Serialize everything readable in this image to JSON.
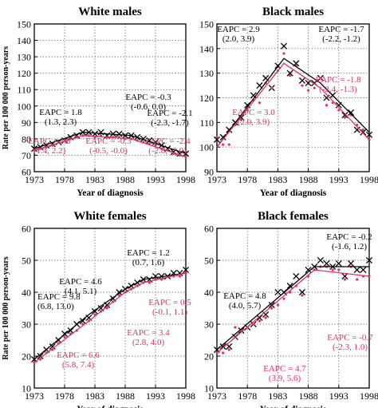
{
  "figure": {
    "ylabel": "Rate per 100 000 person-years",
    "xlabel": "Year of diagnosis"
  },
  "chart_data": [
    {
      "type": "line",
      "title": "White males",
      "xlabel": "Year of diagnosis",
      "ylabel": "Rate per 100 000 person-years",
      "xlim": [
        1973,
        1998
      ],
      "ylim": [
        60,
        150
      ],
      "xticks": [
        1973,
        1978,
        1983,
        1988,
        1993,
        1998
      ],
      "yticks": [
        60,
        70,
        80,
        90,
        100,
        110,
        120,
        130,
        140,
        150
      ],
      "grid": true,
      "series": [
        {
          "marker": "x",
          "color": "#000000",
          "x": [
            1973,
            1974,
            1975,
            1976,
            1977,
            1978,
            1979,
            1980,
            1981,
            1982,
            1983,
            1984,
            1985,
            1986,
            1987,
            1988,
            1989,
            1990,
            1991,
            1992,
            1993,
            1994,
            1995,
            1996,
            1997,
            1998
          ],
          "y": [
            74,
            75,
            76,
            77,
            78,
            79,
            81,
            82,
            84,
            84,
            83,
            84,
            82,
            83,
            83,
            82,
            82,
            81,
            80,
            79,
            78,
            76,
            74,
            72,
            71,
            71
          ]
        },
        {
          "marker": "dot",
          "color": "#e0306a",
          "x": [
            1973,
            1974,
            1975,
            1976,
            1977,
            1978,
            1979,
            1980,
            1981,
            1982,
            1983,
            1984,
            1985,
            1986,
            1987,
            1988,
            1989,
            1990,
            1991,
            1992,
            1993,
            1994,
            1995,
            1996,
            1997,
            1998
          ],
          "y": [
            73,
            74,
            75,
            76,
            78,
            79,
            80,
            81,
            82,
            82,
            81,
            82,
            81,
            81,
            81,
            80,
            80,
            79,
            78,
            77,
            76,
            74,
            73,
            71,
            70,
            69
          ]
        },
        {
          "style": "line",
          "color": "#000000",
          "x": [
            1973,
            1981,
            1989,
            1998
          ],
          "y": [
            74,
            84,
            82,
            71
          ]
        },
        {
          "style": "line",
          "color": "#e0306a",
          "x": [
            1973,
            1981,
            1989,
            1998
          ],
          "y": [
            73,
            82,
            80,
            69
          ]
        }
      ],
      "annotations": [
        {
          "lines": [
            "EAPC = 1.8",
            "(1.3, 2.3)"
          ],
          "color": "#000000"
        },
        {
          "lines": [
            "EAPC = -0.3",
            "(-0.6, 0.0)"
          ],
          "color": "#000000"
        },
        {
          "lines": [
            "EAPC = -2.1",
            "(-2.3, -1.7)"
          ],
          "color": "#000000"
        },
        {
          "lines": [
            "EAPC = 1.8",
            "(1.4, 2.2)"
          ],
          "color": "#e0306a"
        },
        {
          "lines": [
            "EAPC = -0.3",
            "(-0.5, -0.0)"
          ],
          "color": "#e0306a"
        },
        {
          "lines": [
            "EAPC = -2.4",
            "(-2.8, -2.0)"
          ],
          "color": "#e0306a"
        }
      ]
    },
    {
      "type": "line",
      "title": "Black males",
      "xlabel": "Year of diagnosis",
      "ylabel": "",
      "xlim": [
        1973,
        1998
      ],
      "ylim": [
        90,
        150
      ],
      "xticks": [
        1973,
        1978,
        1983,
        1988,
        1993,
        1998
      ],
      "yticks": [
        90,
        100,
        110,
        120,
        130,
        140,
        150
      ],
      "grid": true,
      "series": [
        {
          "marker": "x",
          "color": "#000000",
          "x": [
            1973,
            1974,
            1975,
            1976,
            1977,
            1978,
            1979,
            1980,
            1981,
            1982,
            1983,
            1984,
            1985,
            1986,
            1987,
            1988,
            1989,
            1990,
            1991,
            1992,
            1993,
            1994,
            1995,
            1996,
            1997,
            1998
          ],
          "y": [
            103,
            104,
            107,
            110,
            112,
            117,
            121,
            125,
            128,
            124,
            133,
            141,
            130,
            134,
            127,
            126,
            126,
            128,
            120,
            121,
            117,
            113,
            114,
            107,
            106,
            105
          ]
        },
        {
          "marker": "dot",
          "color": "#e0306a",
          "x": [
            1973,
            1974,
            1975,
            1976,
            1977,
            1978,
            1979,
            1980,
            1981,
            1982,
            1983,
            1984,
            1985,
            1986,
            1987,
            1988,
            1989,
            1990,
            1991,
            1992,
            1993,
            1994,
            1995,
            1996,
            1997,
            1998
          ],
          "y": [
            104,
            101,
            101,
            109,
            111,
            115,
            119,
            118,
            126,
            124,
            131,
            138,
            129,
            133,
            125,
            123,
            124,
            128,
            117,
            118,
            115,
            112,
            113,
            109,
            107,
            103
          ]
        },
        {
          "style": "line",
          "color": "#000000",
          "x": [
            1973,
            1984,
            1990,
            1998
          ],
          "y": [
            100,
            136,
            126,
            106
          ]
        },
        {
          "style": "line",
          "color": "#e0306a",
          "x": [
            1973,
            1984,
            1990,
            1998
          ],
          "y": [
            100,
            134,
            124,
            103
          ]
        }
      ],
      "annotations": [
        {
          "lines": [
            "EAPC = 2.9",
            "(2.0, 3.9)"
          ],
          "color": "#000000"
        },
        {
          "lines": [
            "EAPC = -1.7",
            "(-2.2, -1.2)"
          ],
          "color": "#000000"
        },
        {
          "lines": [
            "EAPC = 3.0",
            "(2.0, 3.9)"
          ],
          "color": "#e0306a"
        },
        {
          "lines": [
            "EAPC = -1.8",
            "(-2.4, -1.3)"
          ],
          "color": "#e0306a"
        }
      ]
    },
    {
      "type": "line",
      "title": "White females",
      "xlabel": "Year of diagnosis",
      "ylabel": "Rate per 100 000 person-years",
      "xlim": [
        1973,
        1998
      ],
      "ylim": [
        10,
        60
      ],
      "xticks": [
        1973,
        1978,
        1983,
        1988,
        1993,
        1998
      ],
      "yticks": [
        10,
        20,
        30,
        40,
        50,
        60
      ],
      "grid": true,
      "series": [
        {
          "marker": "x",
          "color": "#000000",
          "x": [
            1973,
            1974,
            1975,
            1976,
            1977,
            1978,
            1979,
            1980,
            1981,
            1982,
            1983,
            1984,
            1985,
            1986,
            1987,
            1988,
            1989,
            1990,
            1991,
            1992,
            1993,
            1994,
            1995,
            1996,
            1997,
            1998
          ],
          "y": [
            19,
            20,
            22,
            23,
            25,
            27,
            28,
            30,
            31,
            32,
            34,
            35,
            36,
            38,
            40,
            41,
            42,
            43,
            44,
            44,
            45,
            45,
            45,
            46,
            46,
            47
          ]
        },
        {
          "marker": "dot",
          "color": "#e0306a",
          "x": [
            1973,
            1974,
            1975,
            1976,
            1977,
            1978,
            1979,
            1980,
            1981,
            1982,
            1983,
            1984,
            1985,
            1986,
            1987,
            1988,
            1989,
            1990,
            1991,
            1992,
            1993,
            1994,
            1995,
            1996,
            1997,
            1998
          ],
          "y": [
            18,
            19,
            21,
            22,
            24,
            26,
            27,
            28,
            30,
            31,
            33,
            34,
            35,
            37,
            39,
            40,
            41,
            42,
            43,
            43,
            44,
            44,
            45,
            45,
            45,
            46
          ]
        },
        {
          "style": "line",
          "color": "#000000",
          "x": [
            1973,
            1982,
            1988,
            1991,
            1998
          ],
          "y": [
            19,
            33,
            41,
            44,
            46
          ]
        },
        {
          "style": "line",
          "color": "#e0306a",
          "x": [
            1973,
            1982,
            1988,
            1991,
            1998
          ],
          "y": [
            18,
            31,
            40,
            43,
            46
          ]
        }
      ],
      "annotations": [
        {
          "lines": [
            "EAPC = 9.8",
            "(6.8, 13.0)"
          ],
          "color": "#000000"
        },
        {
          "lines": [
            "EAPC = 4.6",
            "(4.1, 5.1)"
          ],
          "color": "#000000"
        },
        {
          "lines": [
            "EAPC = 1.2",
            "(0.7, 1.6)"
          ],
          "color": "#000000"
        },
        {
          "lines": [
            "EAPC = 6.6",
            "(5.8, 7.4)"
          ],
          "color": "#e0306a"
        },
        {
          "lines": [
            "EAPC = 3.4",
            "(2.8, 4.0)"
          ],
          "color": "#e0306a"
        },
        {
          "lines": [
            "EAPC = 0.5",
            "(-0.1, 1.1)"
          ],
          "color": "#e0306a"
        }
      ]
    },
    {
      "type": "line",
      "title": "Black females",
      "xlabel": "Year of diagnosis",
      "ylabel": "",
      "xlim": [
        1973,
        1998
      ],
      "ylim": [
        10,
        60
      ],
      "xticks": [
        1973,
        1978,
        1983,
        1988,
        1993,
        1998
      ],
      "yticks": [
        10,
        20,
        30,
        40,
        50,
        60
      ],
      "grid": true,
      "series": [
        {
          "marker": "x",
          "color": "#000000",
          "x": [
            1973,
            1974,
            1975,
            1976,
            1977,
            1978,
            1979,
            1980,
            1981,
            1982,
            1983,
            1984,
            1985,
            1986,
            1987,
            1988,
            1989,
            1990,
            1991,
            1992,
            1993,
            1994,
            1995,
            1996,
            1997,
            1998
          ],
          "y": [
            22,
            23,
            23,
            26,
            28,
            29,
            30,
            32,
            33,
            36,
            40,
            40,
            42,
            45,
            40,
            47,
            48,
            50,
            49,
            48,
            49,
            45,
            49,
            47,
            47,
            50
          ]
        },
        {
          "marker": "dot",
          "color": "#e0306a",
          "x": [
            1973,
            1974,
            1975,
            1976,
            1977,
            1978,
            1979,
            1980,
            1981,
            1982,
            1983,
            1984,
            1985,
            1986,
            1987,
            1988,
            1989,
            1990,
            1991,
            1992,
            1993,
            1994,
            1995,
            1996,
            1997,
            1998
          ],
          "y": [
            21,
            21,
            22,
            29,
            28,
            29,
            30,
            31,
            32,
            35,
            36,
            38,
            40,
            42,
            39,
            45,
            47,
            48,
            48,
            47,
            47,
            44,
            48,
            44,
            45,
            45
          ]
        },
        {
          "style": "line",
          "color": "#000000",
          "x": [
            1973,
            1989,
            1998
          ],
          "y": [
            22,
            48,
            48
          ]
        },
        {
          "style": "line",
          "color": "#e0306a",
          "x": [
            1973,
            1989,
            1998
          ],
          "y": [
            21,
            47,
            45
          ]
        }
      ],
      "annotations": [
        {
          "lines": [
            "EAPC = 4.8",
            "(4.0, 5.7)"
          ],
          "color": "#000000"
        },
        {
          "lines": [
            "EAPC = -0.2",
            "(-1.6, 1.2)"
          ],
          "color": "#000000"
        },
        {
          "lines": [
            "EAPC = 4.7",
            "(3.9, 5.6)"
          ],
          "color": "#e0306a"
        },
        {
          "lines": [
            "EAPC = -0.7",
            "(-2.3, 1.0)"
          ],
          "color": "#e0306a"
        }
      ]
    }
  ]
}
